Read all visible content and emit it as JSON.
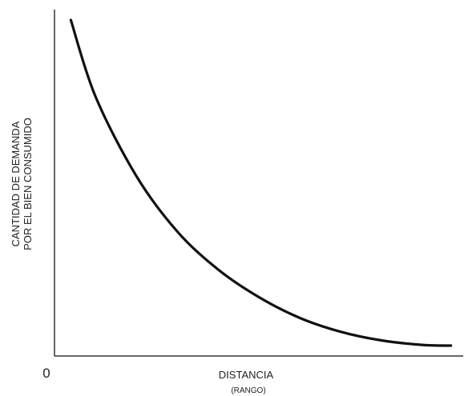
{
  "chart_data": {
    "type": "line",
    "x_axis": {
      "label": "DISTANCIA",
      "sublabel": "(RANGO)",
      "origin_label": "0",
      "range": [
        0,
        100
      ]
    },
    "y_axis": {
      "label_lines": [
        "CANTIDAD DE DEMANDA",
        "POR EL BIEN CONSUMIDO"
      ],
      "range": [
        0,
        100
      ]
    },
    "series": [
      {
        "name": "",
        "color": "#111111",
        "points": [
          [
            4,
            97
          ],
          [
            10,
            75
          ],
          [
            20,
            52
          ],
          [
            30,
            36
          ],
          [
            40,
            25
          ],
          [
            50,
            17
          ],
          [
            60,
            11
          ],
          [
            70,
            7
          ],
          [
            80,
            4.5
          ],
          [
            90,
            3.2
          ],
          [
            97,
            3.0
          ]
        ]
      }
    ],
    "grid": false,
    "legend": "none"
  }
}
